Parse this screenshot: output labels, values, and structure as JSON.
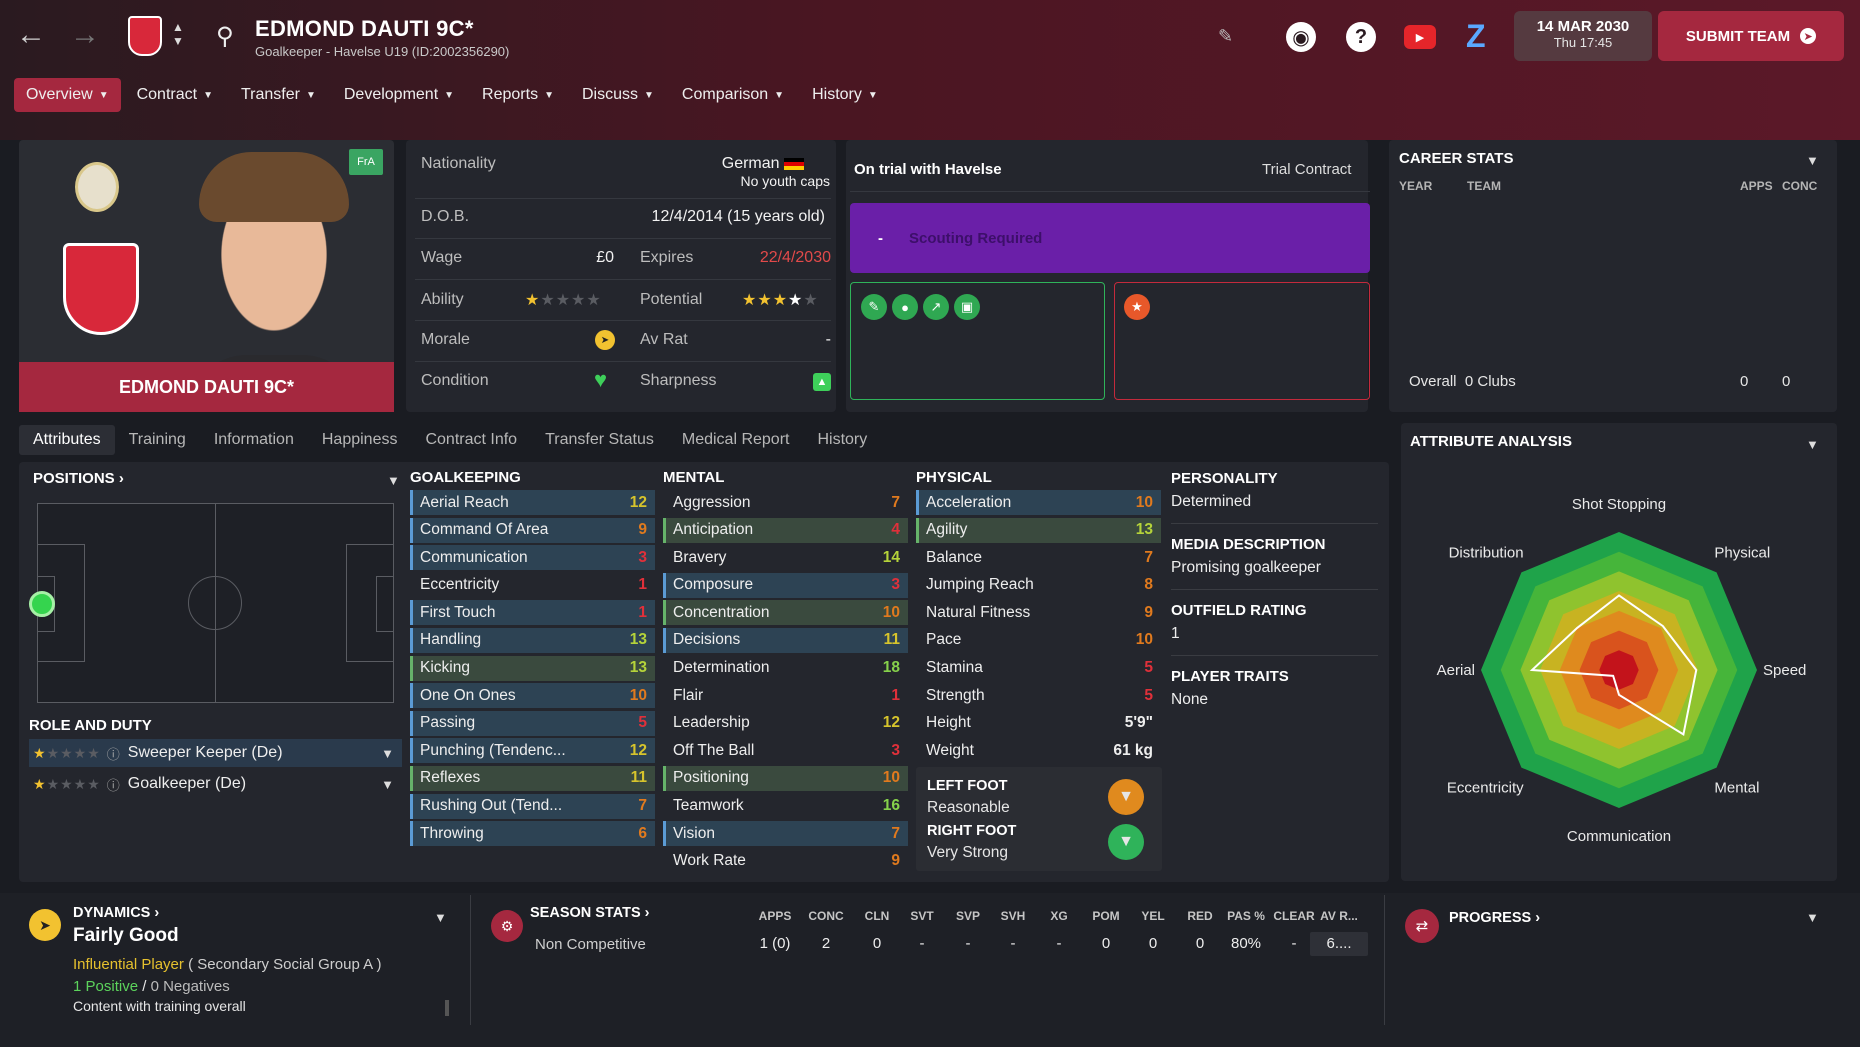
{
  "header": {
    "title": "EDMOND DAUTI 9C*",
    "subtitle": "Goalkeeper - Havelse U19 (ID:2002356290)",
    "date": "14 MAR 2030",
    "time": "Thu 17:45",
    "submit_label": "SUBMIT TEAM"
  },
  "nav": [
    "Overview",
    "Contract",
    "Transfer",
    "Development",
    "Reports",
    "Discuss",
    "Comparison",
    "History"
  ],
  "player": {
    "name": "EDMOND DAUTI 9C*",
    "badge": "FrA"
  },
  "info": {
    "nationality_label": "Nationality",
    "nationality": "German",
    "caps": "No youth caps",
    "dob_label": "D.O.B.",
    "dob": "12/4/2014 (15 years old)",
    "wage_label": "Wage",
    "wage": "£0",
    "expires_label": "Expires",
    "expires": "22/4/2030",
    "ability_label": "Ability",
    "ability_stars": 1,
    "potential_label": "Potential",
    "potential_stars": 3.5,
    "morale_label": "Morale",
    "avrat_label": "Av Rat",
    "avrat": "-",
    "condition_label": "Condition",
    "sharpness_label": "Sharpness"
  },
  "trial": {
    "title": "On trial with Havelse",
    "contract": "Trial Contract",
    "scout_dash": "-",
    "scout": "Scouting Required"
  },
  "career": {
    "title": "CAREER STATS",
    "cols": [
      "YEAR",
      "TEAM",
      "APPS",
      "CONC"
    ],
    "overall_label": "Overall",
    "overall_clubs": "0 Clubs",
    "apps": "0",
    "conc": "0"
  },
  "tabs": [
    "Attributes",
    "Training",
    "Information",
    "Happiness",
    "Contract Info",
    "Transfer Status",
    "Medical Report",
    "History"
  ],
  "positions": {
    "title": "POSITIONS",
    "role_title": "ROLE AND DUTY",
    "roles": [
      {
        "name": "Sweeper Keeper (De)",
        "stars": 1
      },
      {
        "name": "Goalkeeper (De)",
        "stars": 1
      }
    ]
  },
  "goalkeeping": {
    "title": "GOALKEEPING",
    "items": [
      [
        "Aerial Reach",
        "12"
      ],
      [
        "Command Of Area",
        "9"
      ],
      [
        "Communication",
        "3"
      ],
      [
        "Eccentricity",
        "1"
      ],
      [
        "First Touch",
        "1"
      ],
      [
        "Handling",
        "13"
      ],
      [
        "Kicking",
        "13"
      ],
      [
        "One On Ones",
        "10"
      ],
      [
        "Passing",
        "5"
      ],
      [
        "Punching (Tendenc...",
        "12"
      ],
      [
        "Reflexes",
        "11"
      ],
      [
        "Rushing Out (Tend...",
        "7"
      ],
      [
        "Throwing",
        "6"
      ]
    ]
  },
  "mental": {
    "title": "MENTAL",
    "items": [
      [
        "Aggression",
        "7"
      ],
      [
        "Anticipation",
        "4"
      ],
      [
        "Bravery",
        "14"
      ],
      [
        "Composure",
        "3"
      ],
      [
        "Concentration",
        "10"
      ],
      [
        "Decisions",
        "11"
      ],
      [
        "Determination",
        "18"
      ],
      [
        "Flair",
        "1"
      ],
      [
        "Leadership",
        "12"
      ],
      [
        "Off The Ball",
        "3"
      ],
      [
        "Positioning",
        "10"
      ],
      [
        "Teamwork",
        "16"
      ],
      [
        "Vision",
        "7"
      ],
      [
        "Work Rate",
        "9"
      ]
    ]
  },
  "physical": {
    "title": "PHYSICAL",
    "items": [
      [
        "Acceleration",
        "10"
      ],
      [
        "Agility",
        "13"
      ],
      [
        "Balance",
        "7"
      ],
      [
        "Jumping Reach",
        "8"
      ],
      [
        "Natural Fitness",
        "9"
      ],
      [
        "Pace",
        "10"
      ],
      [
        "Stamina",
        "5"
      ],
      [
        "Strength",
        "5"
      ],
      [
        "Height",
        "5'9\""
      ],
      [
        "Weight",
        "61 kg"
      ]
    ]
  },
  "feet": {
    "left_label": "LEFT FOOT",
    "left": "Reasonable",
    "right_label": "RIGHT FOOT",
    "right": "Very Strong"
  },
  "personality": {
    "p_title": "PERSONALITY",
    "p": "Determined",
    "m_title": "MEDIA DESCRIPTION",
    "m": "Promising goalkeeper",
    "o_title": "OUTFIELD RATING",
    "o": "1",
    "t_title": "PLAYER TRAITS",
    "t": "None"
  },
  "analysis": {
    "title": "ATTRIBUTE ANALYSIS",
    "labels": [
      "Shot Stopping",
      "Physical",
      "Speed",
      "Mental",
      "Communication",
      "Eccentricity",
      "Aerial",
      "Distribution"
    ],
    "values": [
      0.54,
      0.45,
      0.56,
      0.66,
      0.18,
      0.06,
      0.63,
      0.43
    ]
  },
  "dynamics": {
    "title": "DYNAMICS",
    "value": "Fairly Good",
    "influence": "Influential Player",
    "group": "( Secondary Social Group A )",
    "positives": "1 Positive",
    "slash": "/",
    "negatives": "0 Negatives",
    "note": "Content with training overall"
  },
  "season": {
    "title": "SEASON STATS",
    "row_label": "Non Competitive",
    "cols": [
      "APPS",
      "CONC",
      "CLN",
      "SVT",
      "SVP",
      "SVH",
      "XG",
      "POM",
      "YEL",
      "RED",
      "PAS %",
      "CLEAR",
      "AV R..."
    ],
    "vals": [
      "1 (0)",
      "2",
      "0",
      "-",
      "-",
      "-",
      "-",
      "0",
      "0",
      "0",
      "80%",
      "-",
      "6...."
    ]
  },
  "progress": {
    "title": "PROGRESS"
  }
}
